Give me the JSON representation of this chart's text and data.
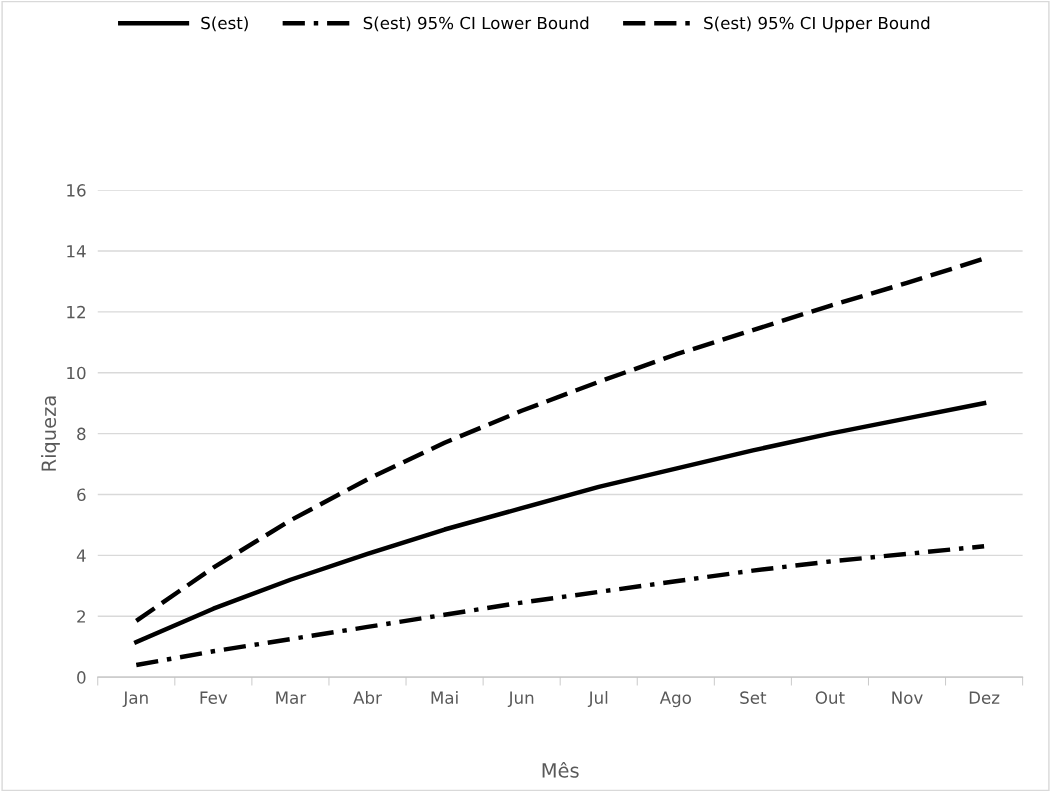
{
  "chart_data": {
    "type": "line",
    "xlabel": "Mês",
    "ylabel": "Riqueza",
    "categories": [
      "Jan",
      "Fev",
      "Mar",
      "Abr",
      "Mai",
      "Jun",
      "Jul",
      "Ago",
      "Set",
      "Out",
      "Nov",
      "Dez"
    ],
    "series": [
      {
        "name": "S(est)",
        "color": "#000000",
        "line_style": "solid",
        "values": [
          1.15,
          2.25,
          3.2,
          4.05,
          4.85,
          5.55,
          6.25,
          6.85,
          7.45,
          8.0,
          8.5,
          9.0
        ]
      },
      {
        "name": "S(est) 95% CI Lower Bound",
        "color": "#000000",
        "line_style": "dashdot",
        "values": [
          0.4,
          0.85,
          1.25,
          1.65,
          2.05,
          2.45,
          2.8,
          3.15,
          3.5,
          3.8,
          4.05,
          4.3
        ]
      },
      {
        "name": "S(est) 95% CI Upper Bound",
        "color": "#000000",
        "line_style": "dashed",
        "values": [
          1.85,
          3.6,
          5.15,
          6.5,
          7.7,
          8.75,
          9.7,
          10.6,
          11.4,
          12.2,
          12.95,
          13.75
        ]
      }
    ],
    "ylim": [
      0,
      16
    ],
    "yticks": [
      0,
      2,
      4,
      6,
      8,
      10,
      12,
      14,
      16
    ],
    "grid": "y",
    "legend": "top",
    "marker": "none"
  }
}
